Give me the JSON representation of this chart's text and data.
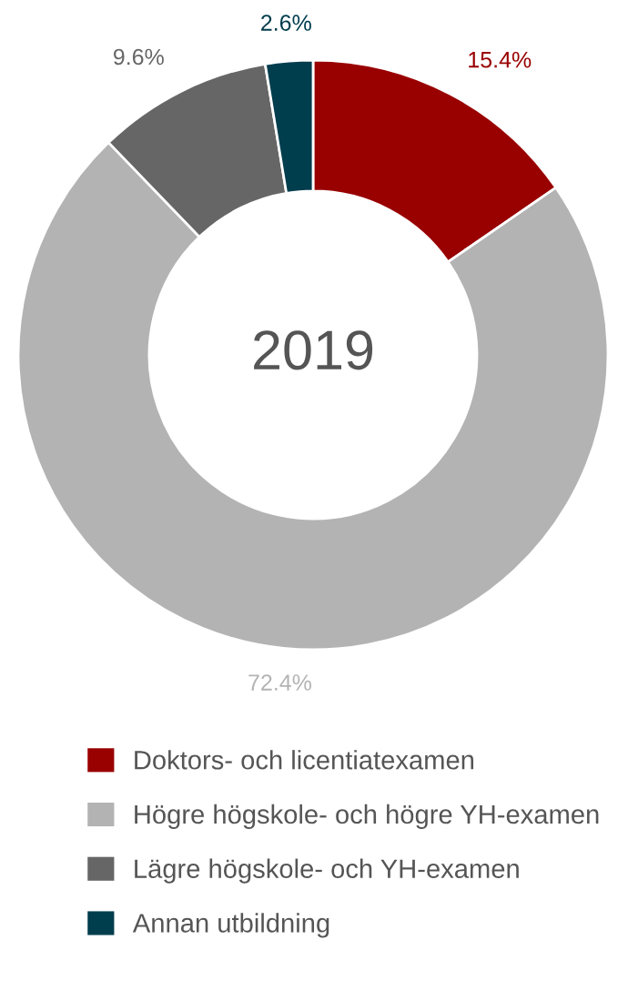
{
  "chart_data": {
    "type": "donut",
    "title": "2019",
    "categories": [
      "Doktors- och licentiatexamen",
      "Högre högskole- och högre YH-examen",
      "Lägre högskole- och YH-examen",
      "Annan utbildning"
    ],
    "values": [
      15.4,
      72.4,
      9.6,
      2.6
    ],
    "colors": [
      "#990000",
      "#b3b3b3",
      "#666666",
      "#003d4d"
    ],
    "value_labels": [
      "15.4%",
      "72.4%",
      "9.6%",
      "2.6%"
    ],
    "legend": "bottom"
  }
}
